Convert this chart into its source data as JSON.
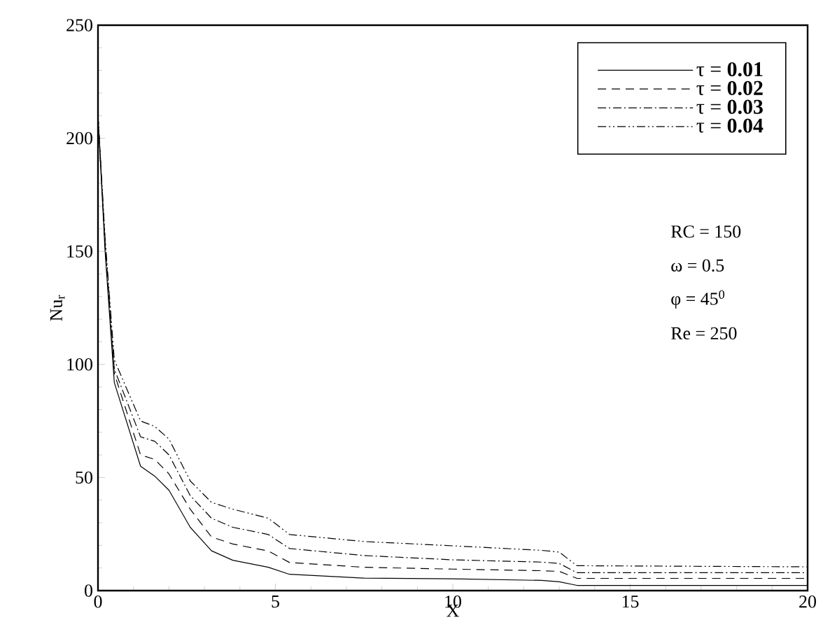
{
  "chart_data": {
    "type": "line",
    "xlabel": "X",
    "ylabel": "Nu$_{r}$",
    "x": [
      0,
      0.2,
      0.46,
      1.2,
      1.6,
      2,
      2.6,
      3.2,
      3.8,
      4.8,
      5.4,
      7.5,
      10,
      12.5,
      13,
      13.5,
      20
    ],
    "series": [
      {
        "name": "τ = **0.01**",
        "color": "#000000",
        "line_style": "solid",
        "values": [
          210,
          150,
          92,
          55,
          50.6,
          44.4,
          28,
          17.6,
          13.4,
          10.3,
          7.2,
          5.5,
          5.2,
          4.5,
          3.9,
          2.3,
          2.3
        ]
      },
      {
        "name": "τ = **0.02**",
        "color": "#000000",
        "line_style": "dashed",
        "values": [
          210,
          152,
          96,
          60,
          58,
          51.6,
          36,
          23.7,
          20.6,
          17.5,
          12.4,
          10.3,
          9.5,
          8.8,
          8.5,
          5.4,
          5.4
        ]
      },
      {
        "name": "τ = **0.03**",
        "color": "#000000",
        "line_style": "dashdot",
        "values": [
          210,
          154,
          98,
          68,
          66,
          60,
          42,
          32,
          28,
          24.8,
          18.6,
          15.5,
          13.6,
          12.6,
          12,
          7.9,
          7.9
        ]
      },
      {
        "name": "τ = **0.04**",
        "color": "#000000",
        "line_style": "dashdotdot",
        "values": [
          210,
          156,
          102,
          75,
          72.6,
          67,
          48.5,
          39,
          36,
          32,
          24.8,
          21.7,
          19.8,
          17.8,
          17,
          11,
          10.5
        ]
      }
    ],
    "xlim": [
      0,
      20
    ],
    "ylim": [
      0,
      250
    ],
    "xticks": [
      0,
      5,
      10,
      15,
      20
    ],
    "yticks": [
      0,
      50,
      100,
      150,
      200,
      250
    ],
    "grid": false,
    "legend": "top right",
    "annotations": [
      "RC = 150",
      "ω = 0.5",
      "φ = 45$^{0}$",
      "Re = 250"
    ]
  }
}
